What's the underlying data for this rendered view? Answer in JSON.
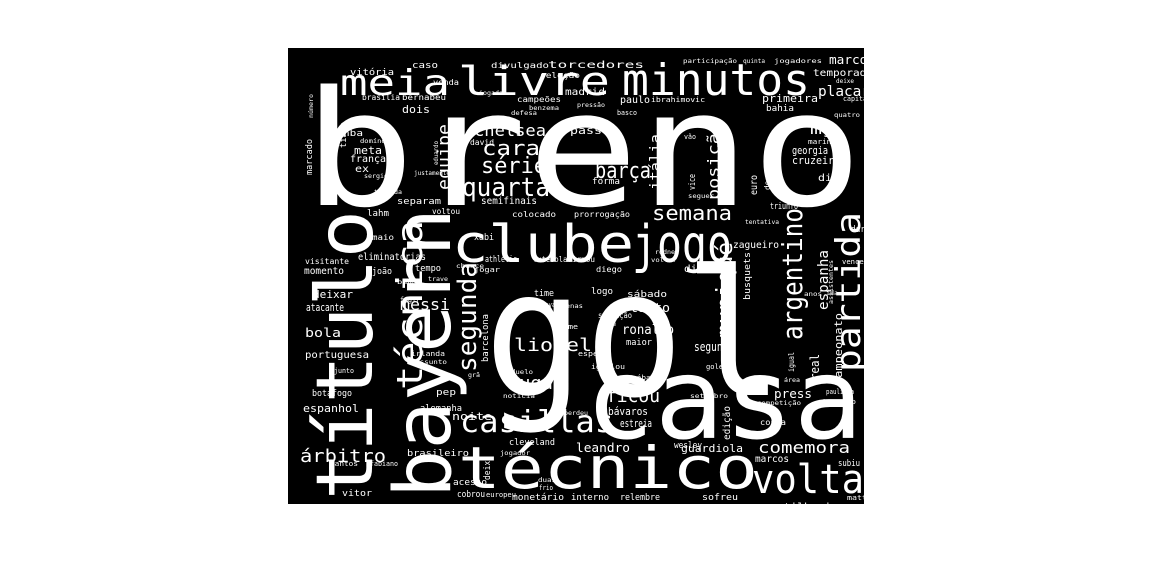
{
  "colors": {
    "background": "#ffffff",
    "panel": "#000000",
    "text": "#ffffff"
  },
  "words": [
    "breno",
    "gol",
    "casa",
    "título",
    "bayern",
    "técnico",
    "clube",
    "jogo",
    "partida",
    "minutos",
    "livre",
    "meia",
    "técnica",
    "volta",
    "casillas",
    "argentino",
    "semana",
    "quarta",
    "segunda",
    "muniqué",
    "série",
    "barça",
    "chelsea",
    "cara",
    "equipe",
    "lionel",
    "messi",
    "lugar",
    "ficou",
    "comemora",
    "árbitro",
    "artilharia",
    "itália",
    "posição",
    "espanha",
    "mg",
    "placar",
    "marcou",
    "temporada",
    "primeira",
    "torcedores",
    "divulgado",
    "seleção",
    "madrid",
    "paulo",
    "campeões",
    "bernabeu",
    "caso",
    "vitória",
    "venda",
    "brasília",
    "dois",
    "nba",
    "meta",
    "frança",
    "ex",
    "tiago",
    "marcado",
    "passo",
    "david",
    "forma",
    "semifinais",
    "separam",
    "voltou",
    "lahm",
    "maio",
    "xabi",
    "colocado",
    "prorrogação",
    "athletic",
    "futebol",
    "afirmou",
    "eliminatórias",
    "visitante",
    "momento",
    "joão",
    "tempo",
    "deixar",
    "atacante",
    "bola",
    "portuguesa",
    "tanto",
    "ronaldo",
    "maior",
    "segundo",
    "barcelona",
    "logo",
    "time",
    "sábado",
    "giovanni",
    "situação",
    "diante",
    "real",
    "igual",
    "campeonato",
    "bávaros",
    "estreia",
    "edição",
    "euro",
    "cruzeiro",
    "di",
    "georgia",
    "marino",
    "derrotada",
    "triunfo",
    "zagueiro",
    "vice",
    "busquets",
    "dia",
    "diego",
    "vencer",
    "hungria",
    "press",
    "paulista",
    "torneio",
    "guardiola",
    "costa",
    "marcos",
    "subiu",
    "wesley",
    "leandro",
    "noite",
    "alemanha",
    "espanhol",
    "pep",
    "botafogo",
    "junto",
    "brasileiro",
    "santos",
    "fabiano",
    "acesso",
    "vitor",
    "cobrou",
    "europeu",
    "monetário",
    "interno",
    "relembre",
    "sofreu",
    "matteo",
    "deixa",
    "cleveland",
    "jogador",
    "frio",
    "duas",
    "bahia",
    "capitão",
    "quatro",
    "ibrahimovic",
    "basco",
    "benzema",
    "pressão",
    "participação",
    "quinta",
    "jogadores",
    "deixe",
    "vão",
    "número",
    "igualou",
    "espera",
    "goleiro",
    "setembro",
    "perdeu",
    "competição",
    "apenas",
    "final",
    "home",
    "irlanda",
    "assunto",
    "noticia",
    "duelo",
    "grã",
    "ida",
    "anos",
    "assistentes",
    "fugir",
    "bem",
    "chance",
    "trave",
    "jogar",
    "rodney",
    "voltar",
    "tentativa",
    "seguer",
    "dar",
    "oportunidades",
    "iogadas",
    "sergio",
    "eduardo",
    "justamente",
    "torcida",
    "domínou",
    "defesa",
    "área",
    "sábado"
  ]
}
